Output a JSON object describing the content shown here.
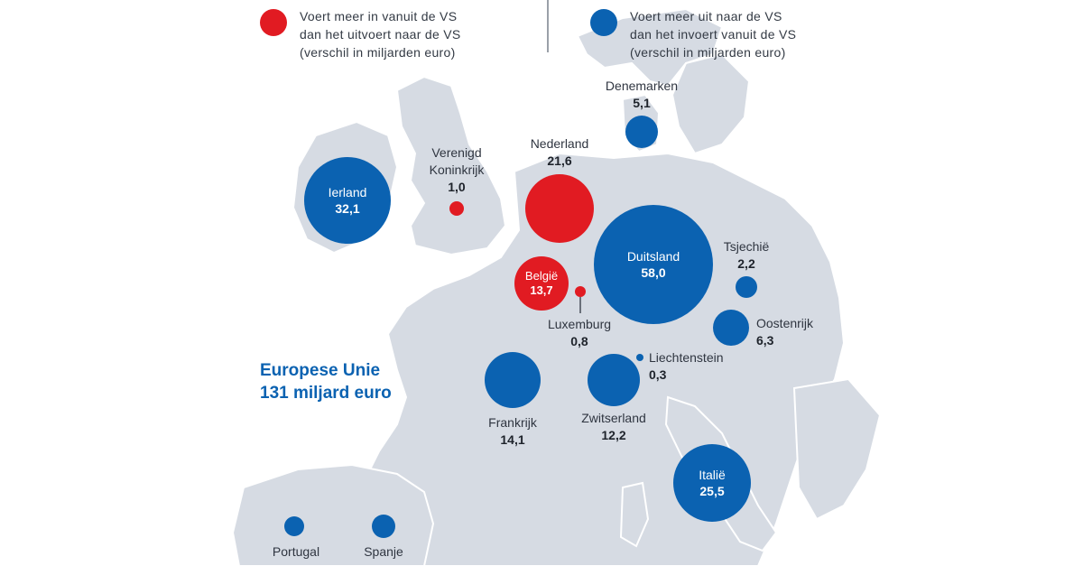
{
  "legend": {
    "import": {
      "line1": "Voert meer in vanuit de VS",
      "line2": "dan het uitvoert naar de VS",
      "line3": "(verschil in miljarden euro)",
      "color": "#e11b22"
    },
    "export": {
      "line1": "Voert meer uit naar de VS",
      "line2": "dan het invoert vanuit de VS",
      "line3": "(verschil in miljarden euro)",
      "color": "#0b62b1"
    }
  },
  "eu": {
    "line1": "Europese Unie",
    "line2": "131 miljard euro"
  },
  "countries": {
    "ierland": {
      "name": "Ierland",
      "value": "32,1",
      "type": "export"
    },
    "verenigd_koninkrijk": {
      "name1": "Verenigd",
      "name2": "Koninkrijk",
      "value": "1,0",
      "type": "import"
    },
    "nederland": {
      "name": "Nederland",
      "value": "21,6",
      "type": "import"
    },
    "denemarken": {
      "name": "Denemarken",
      "value": "5,1",
      "type": "export"
    },
    "duitsland": {
      "name": "Duitsland",
      "value": "58,0",
      "type": "export"
    },
    "tsjechie": {
      "name": "Tsjechië",
      "value": "2,2",
      "type": "export"
    },
    "belgie": {
      "name": "België",
      "value": "13,7",
      "type": "import"
    },
    "luxemburg": {
      "name": "Luxemburg",
      "value": "0,8",
      "type": "import"
    },
    "oostenrijk": {
      "name": "Oostenrijk",
      "value": "6,3",
      "type": "export"
    },
    "liechtenstein": {
      "name": "Liechtenstein",
      "value": "0,3",
      "type": "export"
    },
    "frankrijk": {
      "name": "Frankrijk",
      "value": "14,1",
      "type": "export"
    },
    "zwitserland": {
      "name": "Zwitserland",
      "value": "12,2",
      "type": "export"
    },
    "italie": {
      "name": "Italië",
      "value": "25,5",
      "type": "export"
    },
    "portugal": {
      "name": "Portugal",
      "value": "",
      "type": "export"
    },
    "spanje": {
      "name": "Spanje",
      "value": "",
      "type": "export"
    }
  },
  "colors": {
    "land": "#d6dbe3",
    "export_blue": "#0b62b1",
    "import_red": "#e11b22",
    "title_blue": "#0b62b1"
  }
}
